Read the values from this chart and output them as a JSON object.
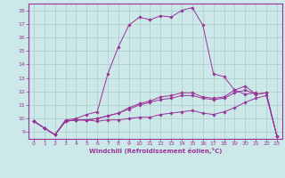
{
  "xlabel": "Windchill (Refroidissement éolien,°C)",
  "bg_color": "#cce8e8",
  "grid_color": "#aacccc",
  "line_color": "#993399",
  "spine_color": "#993399",
  "xlim": [
    -0.5,
    23.5
  ],
  "ylim": [
    8.5,
    18.5
  ],
  "yticks": [
    9,
    10,
    11,
    12,
    13,
    14,
    15,
    16,
    17,
    18
  ],
  "xticks": [
    0,
    1,
    2,
    3,
    4,
    5,
    6,
    7,
    8,
    9,
    10,
    11,
    12,
    13,
    14,
    15,
    16,
    17,
    18,
    19,
    20,
    21,
    22,
    23
  ],
  "series": [
    [
      9.8,
      9.3,
      8.8,
      9.9,
      10.0,
      10.3,
      10.5,
      13.3,
      15.3,
      16.9,
      17.5,
      17.3,
      17.6,
      17.5,
      18.0,
      18.2,
      16.9,
      13.3,
      13.1,
      12.1,
      11.8,
      11.9,
      null,
      null
    ],
    [
      9.8,
      9.3,
      8.8,
      9.8,
      9.9,
      9.9,
      9.8,
      9.9,
      9.9,
      10.0,
      10.1,
      10.1,
      10.3,
      10.4,
      10.5,
      10.6,
      10.4,
      10.3,
      10.5,
      10.8,
      11.2,
      11.5,
      11.7,
      8.7
    ],
    [
      9.8,
      9.3,
      8.8,
      9.8,
      9.9,
      9.9,
      10.0,
      10.2,
      10.4,
      10.7,
      11.0,
      11.2,
      11.4,
      11.5,
      11.7,
      11.7,
      11.5,
      11.4,
      11.5,
      11.9,
      12.1,
      11.8,
      11.9,
      8.7
    ],
    [
      9.8,
      9.3,
      8.8,
      9.8,
      9.9,
      9.9,
      10.0,
      10.2,
      10.4,
      10.8,
      11.1,
      11.3,
      11.6,
      11.7,
      11.9,
      11.9,
      11.6,
      11.5,
      11.6,
      12.1,
      12.4,
      11.8,
      11.9,
      8.7
    ]
  ]
}
